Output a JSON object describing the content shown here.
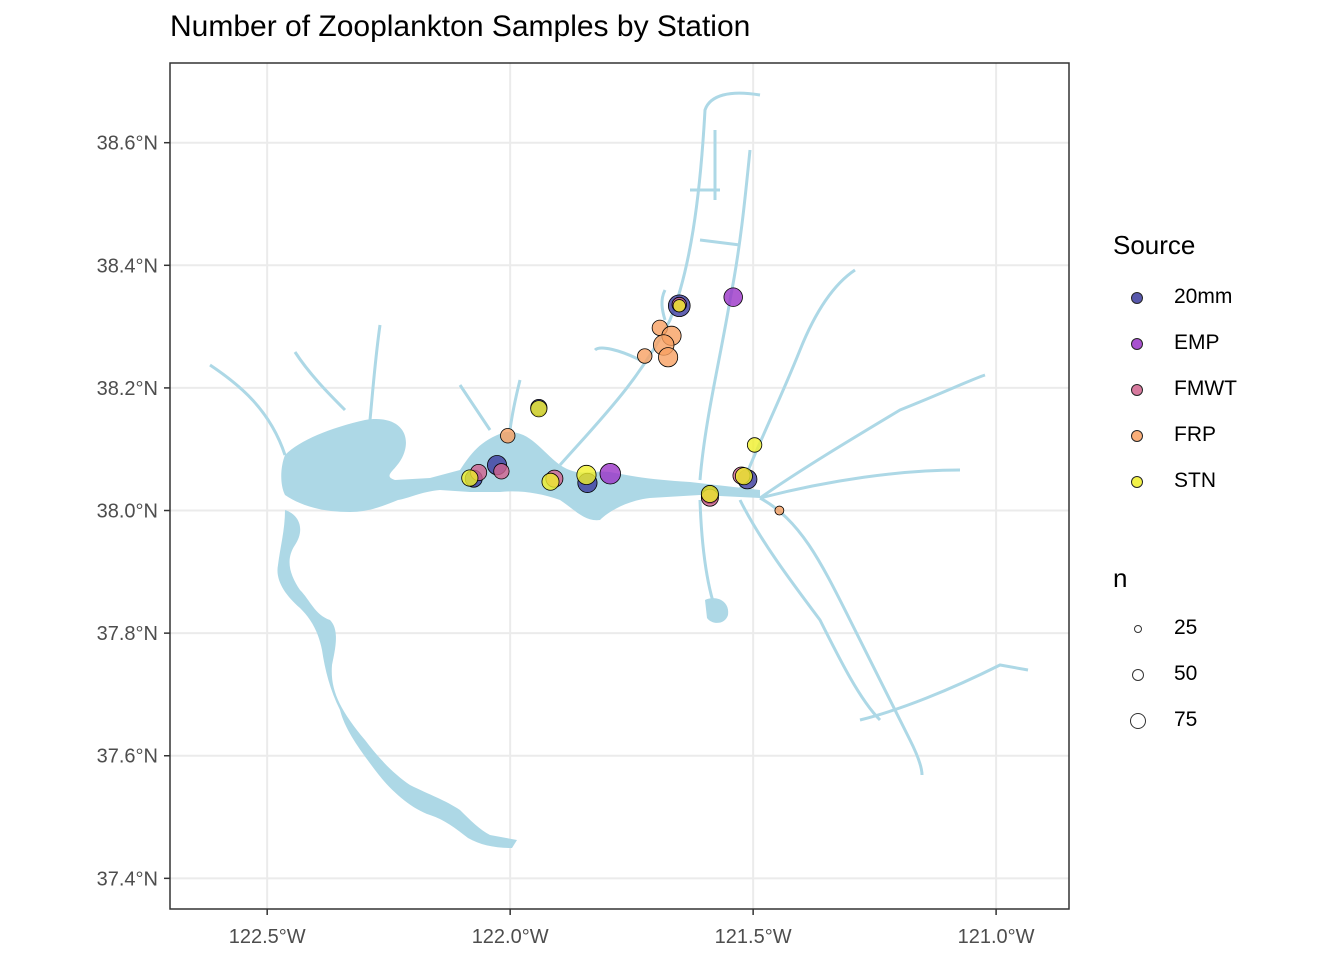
{
  "chart_data": {
    "type": "scatter",
    "title": "Number of Zooplankton Samples by Station",
    "xlabel": "",
    "ylabel": "",
    "xlim": [
      -122.7,
      -120.85
    ],
    "ylim": [
      37.35,
      38.73
    ],
    "x_ticks": [
      {
        "value": -122.5,
        "label": "122.5°W"
      },
      {
        "value": -122.0,
        "label": "122.0°W"
      },
      {
        "value": -121.5,
        "label": "121.5°W"
      },
      {
        "value": -121.0,
        "label": "121.0°W"
      }
    ],
    "y_ticks": [
      {
        "value": 37.4,
        "label": "37.4°N"
      },
      {
        "value": 37.6,
        "label": "37.6°N"
      },
      {
        "value": 37.8,
        "label": "37.8°N"
      },
      {
        "value": 38.0,
        "label": "38.0°N"
      },
      {
        "value": 38.2,
        "label": "38.2°N"
      },
      {
        "value": 38.4,
        "label": "38.4°N"
      },
      {
        "value": 38.6,
        "label": "38.6°N"
      }
    ],
    "grid": true,
    "legend_position": "right",
    "legend": {
      "color_title": "Source",
      "size_title": "n",
      "sources": [
        {
          "name": "20mm",
          "color": "#3B3B9E"
        },
        {
          "name": "EMP",
          "color": "#9A33C7"
        },
        {
          "name": "FMWT",
          "color": "#D1638E"
        },
        {
          "name": "FRP",
          "color": "#F8A062"
        },
        {
          "name": "STN",
          "color": "#F0F02A"
        }
      ],
      "sizes": [
        {
          "label": "25",
          "value": 25
        },
        {
          "label": "50",
          "value": 50
        },
        {
          "label": "75",
          "value": 75
        }
      ]
    },
    "water_color": "#ADD8E6",
    "series": [
      {
        "name": "20mm",
        "points": [
          {
            "lon": -121.652,
            "lat": 38.334,
            "n": 80
          },
          {
            "lon": -122.027,
            "lat": 38.074,
            "n": 60
          },
          {
            "lon": -121.841,
            "lat": 38.045,
            "n": 60
          },
          {
            "lon": -121.512,
            "lat": 38.051,
            "n": 60
          },
          {
            "lon": -122.075,
            "lat": 38.052,
            "n": 45
          },
          {
            "lon": -121.941,
            "lat": 38.168,
            "n": 40
          },
          {
            "lon": -121.589,
            "lat": 38.025,
            "n": 45
          }
        ]
      },
      {
        "name": "EMP",
        "points": [
          {
            "lon": -121.541,
            "lat": 38.348,
            "n": 55
          },
          {
            "lon": -121.794,
            "lat": 38.06,
            "n": 70
          }
        ]
      },
      {
        "name": "FMWT",
        "points": [
          {
            "lon": -121.652,
            "lat": 38.336,
            "n": 30
          },
          {
            "lon": -122.065,
            "lat": 38.062,
            "n": 40
          },
          {
            "lon": -122.018,
            "lat": 38.064,
            "n": 35
          },
          {
            "lon": -121.909,
            "lat": 38.052,
            "n": 45
          },
          {
            "lon": -121.524,
            "lat": 38.057,
            "n": 45
          },
          {
            "lon": -121.589,
            "lat": 38.021,
            "n": 45
          }
        ]
      },
      {
        "name": "FRP",
        "points": [
          {
            "lon": -121.692,
            "lat": 38.298,
            "n": 35
          },
          {
            "lon": -121.668,
            "lat": 38.285,
            "n": 60
          },
          {
            "lon": -121.684,
            "lat": 38.27,
            "n": 70
          },
          {
            "lon": -121.675,
            "lat": 38.25,
            "n": 60
          },
          {
            "lon": -121.723,
            "lat": 38.252,
            "n": 30
          },
          {
            "lon": -122.005,
            "lat": 38.122,
            "n": 30
          },
          {
            "lon": -121.446,
            "lat": 38.0,
            "n": 8
          }
        ]
      },
      {
        "name": "STN",
        "points": [
          {
            "lon": -121.652,
            "lat": 38.334,
            "n": 20
          },
          {
            "lon": -121.941,
            "lat": 38.166,
            "n": 40
          },
          {
            "lon": -122.083,
            "lat": 38.053,
            "n": 40
          },
          {
            "lon": -121.917,
            "lat": 38.047,
            "n": 45
          },
          {
            "lon": -121.843,
            "lat": 38.058,
            "n": 60
          },
          {
            "lon": -121.519,
            "lat": 38.056,
            "n": 45
          },
          {
            "lon": -121.589,
            "lat": 38.027,
            "n": 45
          },
          {
            "lon": -121.497,
            "lat": 38.107,
            "n": 30
          }
        ]
      }
    ]
  }
}
